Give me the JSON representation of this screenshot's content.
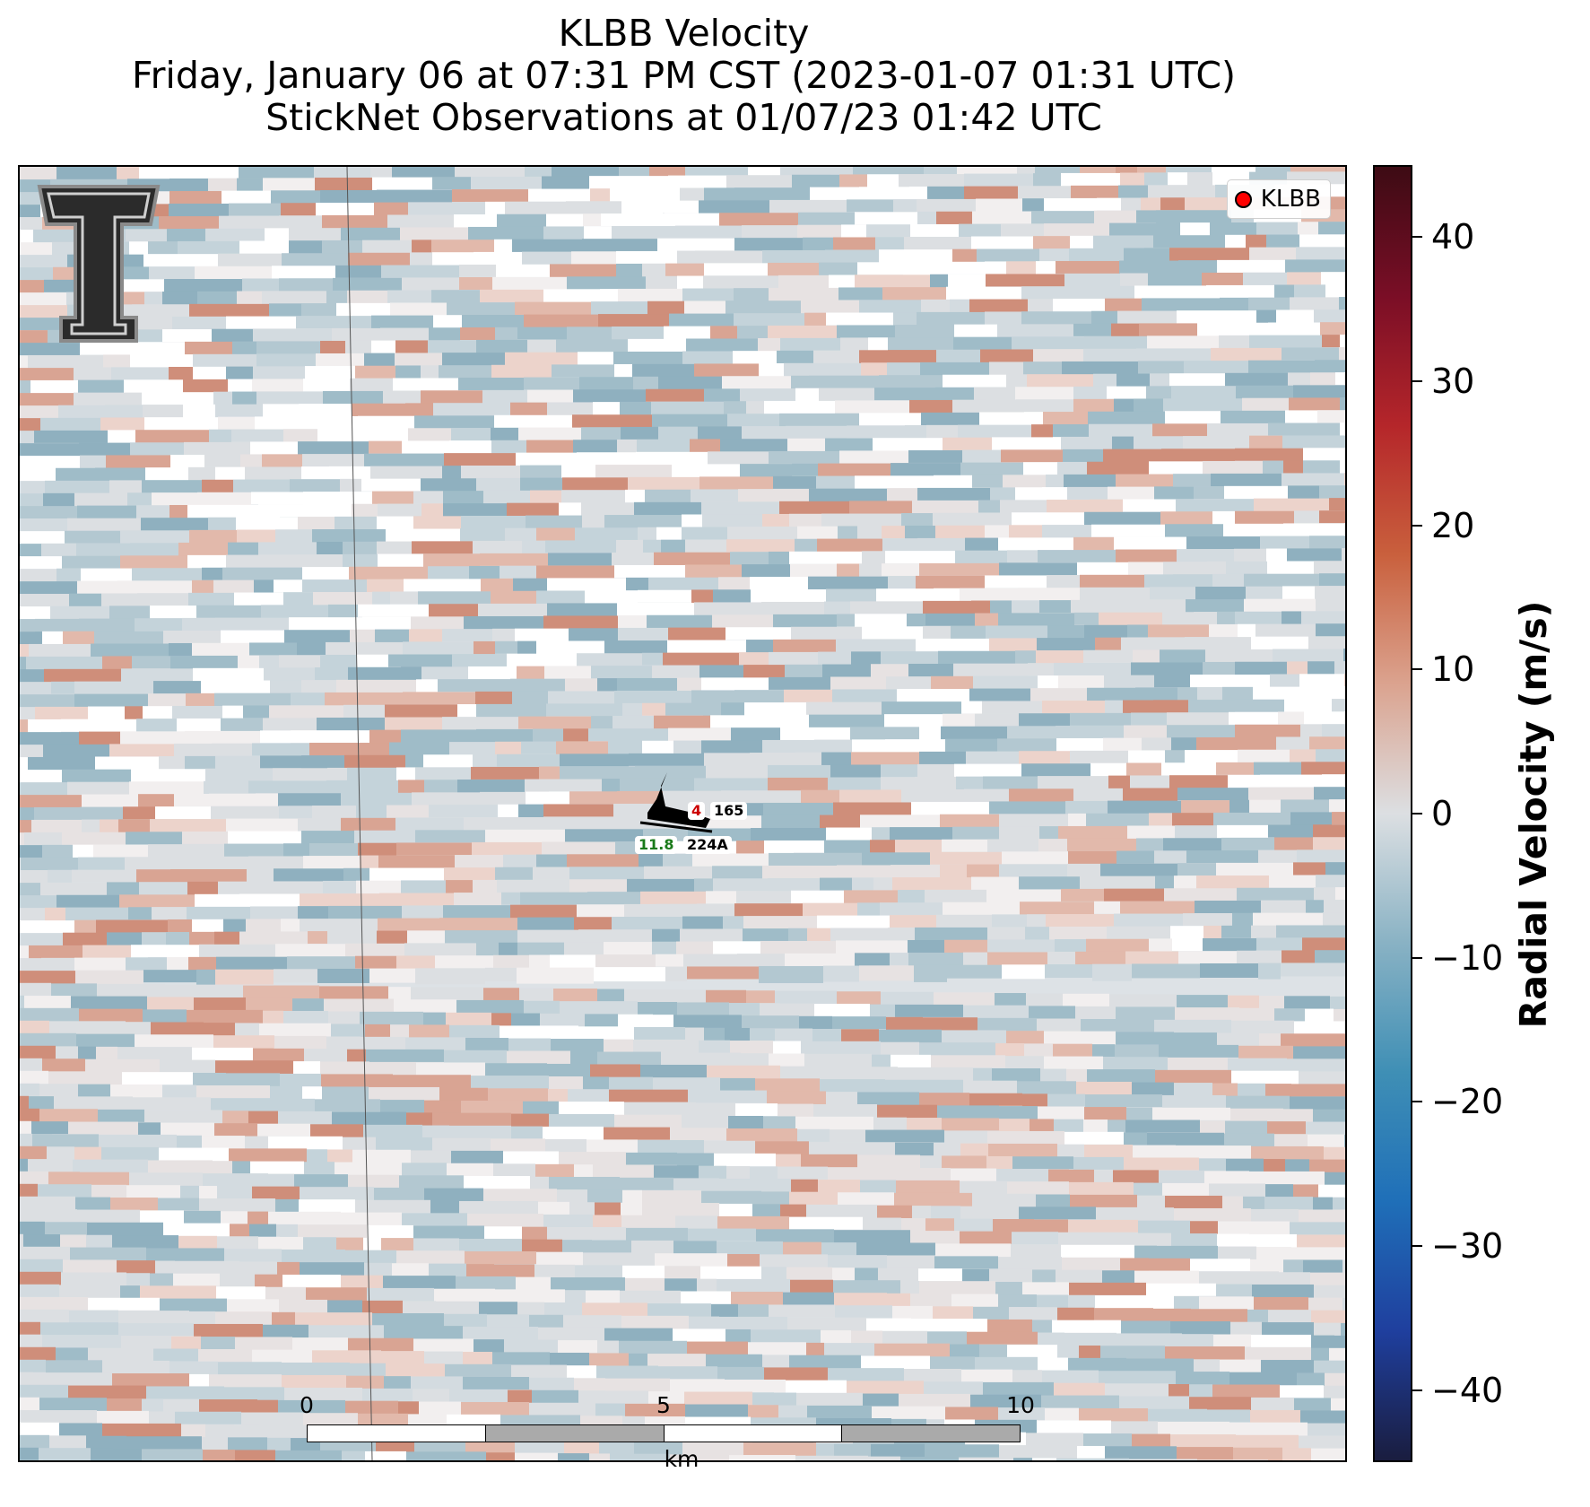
{
  "title": {
    "line1": "KLBB Velocity",
    "line2": "Friday, January 06 at 07:31 PM CST (2023-01-07 01:31 UTC)",
    "line3": "StickNet Observations at 01/07/23 01:42 UTC"
  },
  "legend": {
    "label": "KLBB",
    "marker_color": "#ff0000"
  },
  "colorbar": {
    "label": "Radial Velocity (m/s)",
    "min": -45,
    "max": 45,
    "ticks": [
      "40",
      "30",
      "20",
      "10",
      "0",
      "−10",
      "−20",
      "−30",
      "−40"
    ],
    "tick_values": [
      40,
      30,
      20,
      10,
      0,
      -10,
      -20,
      -30,
      -40
    ],
    "colors": [
      "#1a1d3f",
      "#1f3f9e",
      "#1f6fb8",
      "#3f8fb5",
      "#89b2c4",
      "#dcdfe2",
      "#dba38f",
      "#c9603d",
      "#b5262a",
      "#7a0e26",
      "#3d0b14"
    ]
  },
  "stations": [
    {
      "id": "165",
      "temp_color": "#cc0000",
      "temp_value": "4"
    },
    {
      "id": "224A",
      "dew_color": "#1a7a1a",
      "dew_value": "11.8"
    }
  ],
  "scalebar": {
    "labels": [
      "0",
      "5",
      "10"
    ],
    "unit": "km",
    "max_km": 10
  },
  "logo": {
    "name": "texas-tech-double-t"
  }
}
